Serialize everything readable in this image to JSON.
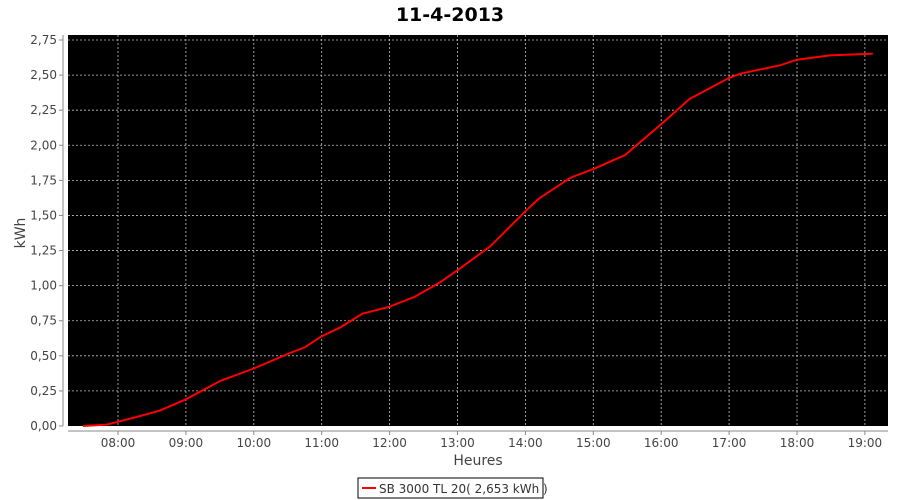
{
  "chart_data": {
    "type": "line",
    "title": "11-4-2013",
    "xlabel": "Heures",
    "ylabel": "kWh",
    "xlim": [
      "07:30",
      "19:20"
    ],
    "ylim": [
      0,
      2.75
    ],
    "x_ticks": [
      "08:00",
      "09:00",
      "10:00",
      "11:00",
      "12:00",
      "13:00",
      "14:00",
      "15:00",
      "16:00",
      "17:00",
      "18:00",
      "19:00"
    ],
    "y_ticks": [
      "0,00",
      "0,25",
      "0,50",
      "0,75",
      "1,00",
      "1,25",
      "1,50",
      "1,75",
      "2,00",
      "2,25",
      "2,50",
      "2,75"
    ],
    "grid": true,
    "legend_placement": "bottom",
    "colors": {
      "background": "#000000",
      "series": "#ff0000",
      "grid": "#c0c0c0"
    },
    "series": [
      {
        "name": "SB 3000 TL 20( 2,653 kWh )",
        "x": [
          "07:29",
          "07:50",
          "08:00",
          "08:19",
          "08:37",
          "09:00",
          "09:30",
          "10:00",
          "10:32",
          "10:45",
          "11:00",
          "11:16",
          "11:36",
          "12:00",
          "12:22",
          "12:44",
          "13:00",
          "13:29",
          "14:00",
          "14:12",
          "14:40",
          "15:00",
          "15:28",
          "16:00",
          "16:25",
          "17:00",
          "17:10",
          "17:45",
          "18:00",
          "18:29",
          "19:00",
          "19:07"
        ],
        "values": [
          0.0,
          0.01,
          0.03,
          0.07,
          0.11,
          0.19,
          0.32,
          0.41,
          0.52,
          0.56,
          0.64,
          0.7,
          0.8,
          0.85,
          0.92,
          1.02,
          1.11,
          1.28,
          1.53,
          1.62,
          1.77,
          1.83,
          1.93,
          2.15,
          2.33,
          2.48,
          2.51,
          2.57,
          2.61,
          2.64,
          2.65,
          2.653
        ]
      }
    ]
  }
}
